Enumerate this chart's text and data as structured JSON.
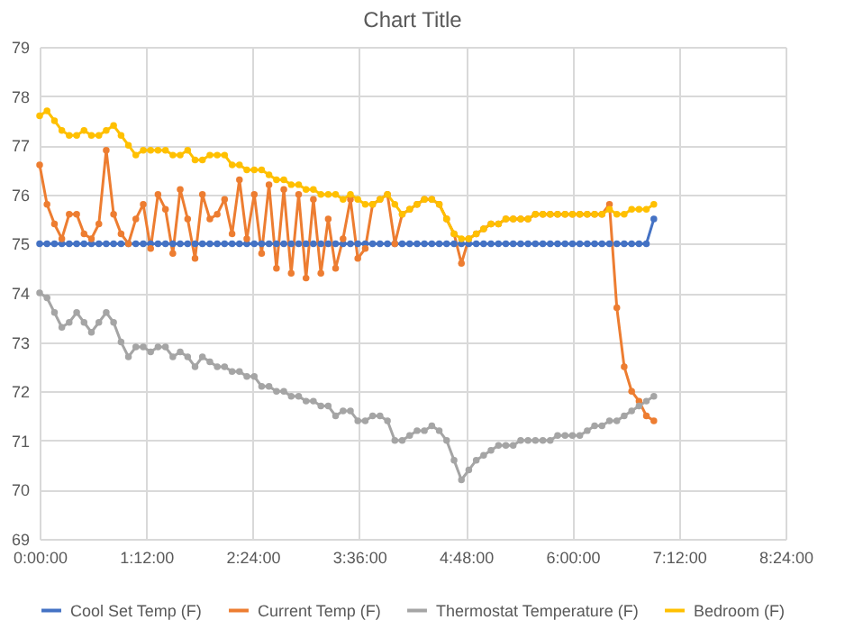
{
  "chart_data": {
    "type": "line",
    "title": "Chart Title",
    "x": [
      0,
      0.083,
      0.167,
      0.25,
      0.333,
      0.417,
      0.5,
      0.583,
      0.667,
      0.75,
      0.833,
      0.917,
      1,
      1.083,
      1.167,
      1.25,
      1.333,
      1.417,
      1.5,
      1.583,
      1.667,
      1.75,
      1.833,
      1.917,
      2,
      2.083,
      2.167,
      2.25,
      2.333,
      2.417,
      2.5,
      2.583,
      2.667,
      2.75,
      2.833,
      2.917,
      3,
      3.083,
      3.167,
      3.25,
      3.333,
      3.417,
      3.5,
      3.583,
      3.667,
      3.75,
      3.833,
      3.917,
      4,
      4.083,
      4.167,
      4.25,
      4.333,
      4.417,
      4.5,
      4.583,
      4.667,
      4.75,
      4.833,
      4.917,
      5,
      5.083,
      5.167,
      5.25,
      5.333,
      5.417,
      5.5,
      5.583,
      5.667,
      5.75,
      5.833,
      5.917,
      6,
      6.083,
      6.167,
      6.25,
      6.333,
      6.417,
      6.5,
      6.583,
      6.667,
      6.75,
      6.833,
      6.917
    ],
    "series": [
      {
        "name": "Cool Set Temp (F)",
        "color": "#4472c4",
        "values": [
          75,
          75,
          75,
          75,
          75,
          75,
          75,
          75,
          75,
          75,
          75,
          75,
          75,
          75,
          75,
          75,
          75,
          75,
          75,
          75,
          75,
          75,
          75,
          75,
          75,
          75,
          75,
          75,
          75,
          75,
          75,
          75,
          75,
          75,
          75,
          75,
          75,
          75,
          75,
          75,
          75,
          75,
          75,
          75,
          75,
          75,
          75,
          75,
          75,
          75,
          75,
          75,
          75,
          75,
          75,
          75,
          75,
          75,
          75,
          75,
          75,
          75,
          75,
          75,
          75,
          75,
          75,
          75,
          75,
          75,
          75,
          75,
          75,
          75,
          75,
          75,
          75,
          75,
          75,
          75,
          75,
          75,
          75,
          75.5
        ]
      },
      {
        "name": "Current Temp (F)",
        "color": "#ed7d31",
        "values": [
          76.6,
          75.8,
          75.4,
          75.1,
          75.6,
          75.6,
          75.2,
          75.1,
          75.4,
          76.9,
          75.6,
          75.2,
          75.0,
          75.5,
          75.8,
          74.9,
          76.0,
          75.7,
          74.8,
          76.1,
          75.5,
          74.7,
          76.0,
          75.5,
          75.6,
          75.9,
          75.2,
          76.3,
          75.1,
          76.0,
          74.8,
          76.2,
          74.5,
          76.1,
          74.4,
          76.0,
          74.3,
          75.9,
          74.4,
          75.5,
          74.5,
          75.1,
          75.9,
          74.7,
          74.9,
          75.8,
          75.9,
          76.0,
          75.0,
          75.6,
          75.7,
          75.8,
          75.9,
          75.9,
          75.8,
          75.5,
          75.2,
          74.6,
          75.1,
          75.2,
          75.3,
          75.4,
          75.4,
          75.5,
          75.5,
          75.5,
          75.5,
          75.6,
          75.6,
          75.6,
          75.6,
          75.6,
          75.6,
          75.6,
          75.6,
          75.6,
          75.6,
          75.8,
          73.7,
          72.5,
          72.0,
          71.8,
          71.5,
          71.4
        ]
      },
      {
        "name": "Thermostat Temperature (F)",
        "color": "#a5a5a5",
        "values": [
          74.0,
          73.9,
          73.6,
          73.3,
          73.4,
          73.6,
          73.4,
          73.2,
          73.4,
          73.6,
          73.4,
          73.0,
          72.7,
          72.9,
          72.9,
          72.8,
          72.9,
          72.9,
          72.7,
          72.8,
          72.7,
          72.5,
          72.7,
          72.6,
          72.5,
          72.5,
          72.4,
          72.4,
          72.3,
          72.3,
          72.1,
          72.1,
          72.0,
          72.0,
          71.9,
          71.9,
          71.8,
          71.8,
          71.7,
          71.7,
          71.5,
          71.6,
          71.6,
          71.4,
          71.4,
          71.5,
          71.5,
          71.4,
          71.0,
          71.0,
          71.1,
          71.2,
          71.2,
          71.3,
          71.2,
          71.0,
          70.6,
          70.2,
          70.4,
          70.6,
          70.7,
          70.8,
          70.9,
          70.9,
          70.9,
          71.0,
          71.0,
          71.0,
          71.0,
          71.0,
          71.1,
          71.1,
          71.1,
          71.1,
          71.2,
          71.3,
          71.3,
          71.4,
          71.4,
          71.5,
          71.6,
          71.7,
          71.8,
          71.9
        ]
      },
      {
        "name": "Bedroom (F)",
        "color": "#ffc000",
        "values": [
          77.6,
          77.7,
          77.5,
          77.3,
          77.2,
          77.2,
          77.3,
          77.2,
          77.2,
          77.3,
          77.4,
          77.2,
          77.0,
          76.8,
          76.9,
          76.9,
          76.9,
          76.9,
          76.8,
          76.8,
          76.9,
          76.7,
          76.7,
          76.8,
          76.8,
          76.8,
          76.6,
          76.6,
          76.5,
          76.5,
          76.5,
          76.4,
          76.3,
          76.3,
          76.2,
          76.2,
          76.1,
          76.1,
          76.0,
          76.0,
          76.0,
          75.9,
          76.0,
          75.9,
          75.8,
          75.8,
          75.9,
          76.0,
          75.8,
          75.6,
          75.7,
          75.8,
          75.9,
          75.9,
          75.8,
          75.5,
          75.2,
          75.1,
          75.1,
          75.2,
          75.3,
          75.4,
          75.4,
          75.5,
          75.5,
          75.5,
          75.5,
          75.6,
          75.6,
          75.6,
          75.6,
          75.6,
          75.6,
          75.6,
          75.6,
          75.6,
          75.6,
          75.7,
          75.6,
          75.6,
          75.7,
          75.7,
          75.7,
          75.8
        ]
      }
    ],
    "xlim": [
      0,
      8.4
    ],
    "xticks": [
      {
        "value": 0,
        "label": "0:00:00"
      },
      {
        "value": 1.2,
        "label": "1:12:00"
      },
      {
        "value": 2.4,
        "label": "2:24:00"
      },
      {
        "value": 3.6,
        "label": "3:36:00"
      },
      {
        "value": 4.8,
        "label": "4:48:00"
      },
      {
        "value": 6,
        "label": "6:00:00"
      },
      {
        "value": 7.2,
        "label": "7:12:00"
      },
      {
        "value": 8.4,
        "label": "8:24:00"
      }
    ],
    "ylim": [
      69,
      79
    ],
    "yticks": [
      69,
      70,
      71,
      72,
      73,
      74,
      75,
      76,
      77,
      78,
      79
    ],
    "grid": true,
    "legend": "bottom",
    "marker": "circle",
    "line_style": "solid"
  }
}
